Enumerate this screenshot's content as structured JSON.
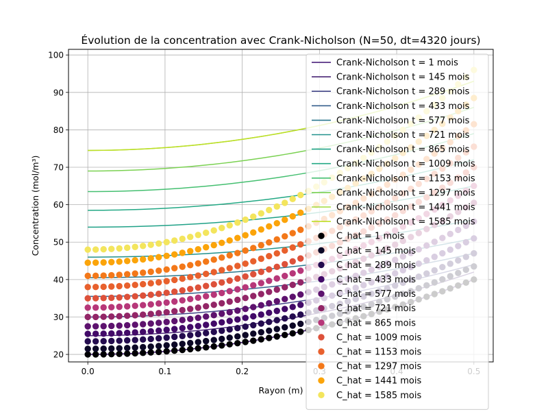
{
  "chart_data": {
    "type": "scatter",
    "title": "Évolution de la concentration avec Crank-Nicholson (N=50, dt=4320 jours)",
    "xlabel": "Rayon (m)",
    "ylabel": "Concentration (mol/m³)",
    "xlim": [
      -0.025,
      0.525
    ],
    "ylim": [
      18,
      101.5
    ],
    "xticks": [
      "0.0",
      "0.1",
      "0.2",
      "0.3",
      "0.4",
      "0.5"
    ],
    "yticks": [
      "20",
      "30",
      "40",
      "50",
      "60",
      "70",
      "80",
      "90",
      "100"
    ],
    "grid": true,
    "legend_position": "top-right",
    "x_range": [
      0.0,
      0.5
    ],
    "points_per_series": 50,
    "line_series": [
      {
        "name": "Crank-Nicholson t = 1 mois",
        "color": "#3b0f70",
        "start": 20.0,
        "end": 40.0
      },
      {
        "name": "Crank-Nicholson t = 145 mois",
        "color": "#482475",
        "start": 25.0,
        "end": 42.0
      },
      {
        "name": "Crank-Nicholson t = 289 mois",
        "color": "#414487",
        "start": 30.0,
        "end": 44.0
      },
      {
        "name": "Crank-Nicholson t = 433 mois",
        "color": "#355f8d",
        "start": 35.5,
        "end": 47.0
      },
      {
        "name": "Crank-Nicholson t = 577 mois",
        "color": "#2a788e",
        "start": 40.5,
        "end": 51.0
      },
      {
        "name": "Crank-Nicholson t = 721 mois",
        "color": "#21918c",
        "start": 46.0,
        "end": 56.0
      },
      {
        "name": "Crank-Nicholson t = 865 mois",
        "color": "#1fa187",
        "start": 54.0,
        "end": 65.0
      },
      {
        "name": "Crank-Nicholson t = 1009 mois",
        "color": "#22a884",
        "start": 58.5,
        "end": 72.0
      },
      {
        "name": "Crank-Nicholson t = 1153 mois",
        "color": "#44bf70",
        "start": 63.5,
        "end": 79.0
      },
      {
        "name": "Crank-Nicholson t = 1297 mois",
        "color": "#7ad151",
        "start": 69.0,
        "end": 86.0
      },
      {
        "name": "Crank-Nicholson t = 1441 mois",
        "color": "#9fda3a",
        "start": 74.5,
        "end": 93.0
      },
      {
        "name": "Crank-Nicholson t = 1585 mois",
        "color": "#bddf26",
        "start": 74.5,
        "end": 93.0
      }
    ],
    "scatter_series": [
      {
        "name": "C_hat = 1 mois",
        "color": "#000004",
        "start": 20.0,
        "end": 40.0
      },
      {
        "name": "C_hat = 145 mois",
        "color": "#0c0826",
        "start": 21.5,
        "end": 43.5
      },
      {
        "name": "C_hat = 289 mois",
        "color": "#240c4f",
        "start": 23.5,
        "end": 47.0
      },
      {
        "name": "C_hat = 433 mois",
        "color": "#420a68",
        "start": 25.5,
        "end": 51.0
      },
      {
        "name": "C_hat = 577 mois",
        "color": "#5d126e",
        "start": 27.5,
        "end": 55.5
      },
      {
        "name": "C_hat = 721 mois",
        "color": "#932667",
        "start": 30.0,
        "end": 60.5
      },
      {
        "name": "C_hat = 865 mois",
        "color": "#b73779",
        "start": 32.5,
        "end": 65.0
      },
      {
        "name": "C_hat = 1009 mois",
        "color": "#dd513a",
        "start": 35.0,
        "end": 70.0
      },
      {
        "name": "C_hat = 1153 mois",
        "color": "#e8602d",
        "start": 38.0,
        "end": 75.5
      },
      {
        "name": "C_hat = 1297 mois",
        "color": "#f37819",
        "start": 41.0,
        "end": 81.5
      },
      {
        "name": "C_hat = 1441 mois",
        "color": "#fba40a",
        "start": 44.5,
        "end": 88.5
      },
      {
        "name": "C_hat = 1585 mois",
        "color": "#f3e55d",
        "start": 48.0,
        "end": 96.0
      }
    ]
  }
}
